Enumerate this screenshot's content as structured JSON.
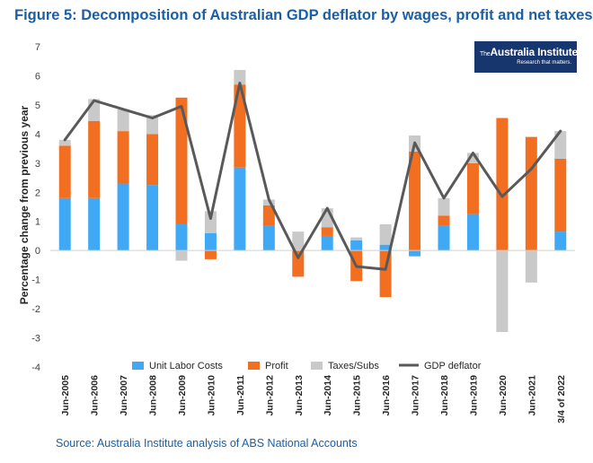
{
  "title": "Figure 5: Decomposition of Australian GDP deflator by wages, profit and net taxes",
  "source": "Source: Australia Institute analysis of ABS National Accounts",
  "logo": {
    "the": "The",
    "name": "Australia Institute",
    "tagline": "Research that matters."
  },
  "colors": {
    "labor": "#3fa9f5",
    "profit": "#f26f21",
    "taxes": "#c9c9c9",
    "deflator": "#595959",
    "title": "#1a5fa6",
    "logo_bg": "#17366e"
  },
  "chart_data": {
    "type": "bar",
    "stacked": true,
    "ylabel": "Percentage change from previous year",
    "xlabel": "",
    "ylim": [
      -4,
      7
    ],
    "yticks": [
      -4,
      -3,
      -2,
      -1,
      0,
      1,
      2,
      3,
      4,
      5,
      6,
      7
    ],
    "categories": [
      "Jun-2005",
      "Jun-2006",
      "Jun-2007",
      "Jun-2008",
      "Jun-2009",
      "Jun-2010",
      "Jun-2011",
      "Jun-2012",
      "Jun-2013",
      "Jun-2014",
      "Jun-2015",
      "Jun-2016",
      "Jun-2017",
      "Jun-2018",
      "Jun-2019",
      "Jun-2020",
      "Jun-2021",
      "3/4 of 2022"
    ],
    "series": [
      {
        "name": "Unit Labor Costs",
        "type": "bar",
        "values": [
          1.8,
          1.8,
          2.3,
          2.25,
          0.9,
          0.6,
          2.85,
          0.85,
          0,
          0.5,
          0.35,
          0.2,
          -0.2,
          0.85,
          1.25,
          0,
          0,
          0.65
        ]
      },
      {
        "name": "Profit",
        "type": "bar",
        "values": [
          1.8,
          2.65,
          1.8,
          1.75,
          4.35,
          -0.3,
          2.85,
          0.7,
          -0.9,
          0.3,
          -1.05,
          -1.6,
          3.4,
          0.35,
          1.75,
          4.55,
          3.9,
          2.5
        ]
      },
      {
        "name": "Taxes/Subs",
        "type": "bar",
        "values": [
          0.2,
          0.75,
          0.75,
          0.65,
          -0.35,
          0.75,
          0.5,
          0.2,
          0.65,
          0.65,
          0.1,
          0.7,
          0.55,
          0.6,
          0.35,
          -2.8,
          -1.1,
          0.95
        ]
      },
      {
        "name": "GDP deflator",
        "type": "line",
        "values": [
          3.8,
          5.15,
          4.85,
          4.55,
          4.95,
          1.1,
          5.75,
          1.75,
          -0.25,
          1.45,
          -0.55,
          -0.65,
          3.7,
          1.8,
          3.35,
          1.85,
          2.8,
          4.1
        ]
      }
    ]
  }
}
